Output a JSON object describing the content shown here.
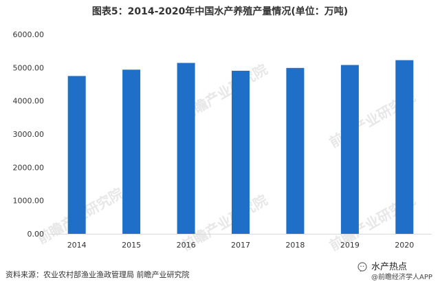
{
  "title": "图表5：2014-2020年中国水产养殖产量情况(单位：万吨)",
  "source": "资料来源：农业农村部渔业渔政管理局 前瞻产业研究院",
  "watermark_text": "前瞻产业研究院",
  "brand": {
    "main": "水产热点",
    "sub": "@前瞻经济学人APP",
    "icon": "wechat-icon"
  },
  "colors": {
    "bar": "#1F6FC9",
    "axis": "#D9D9D9",
    "text": "#333333",
    "watermark": "#7a7a7a"
  },
  "chart_data": {
    "type": "bar",
    "title": "图表5：2014-2020年中国水产养殖产量情况(单位：万吨)",
    "categories": [
      "2014",
      "2015",
      "2016",
      "2017",
      "2018",
      "2019",
      "2020"
    ],
    "values": [
      4748.41,
      4937.9,
      5142.39,
      4905.99,
      4991.06,
      5079.07,
      5224.2
    ],
    "ylim": [
      0,
      6000
    ],
    "yticks": [
      "0.00",
      "1000.00",
      "2000.00",
      "3000.00",
      "4000.00",
      "5000.00",
      "6000.00"
    ],
    "yticks_values": [
      0,
      1000,
      2000,
      3000,
      4000,
      5000,
      6000
    ],
    "xlabel": "",
    "ylabel": "",
    "grid": false,
    "legend": "none"
  }
}
